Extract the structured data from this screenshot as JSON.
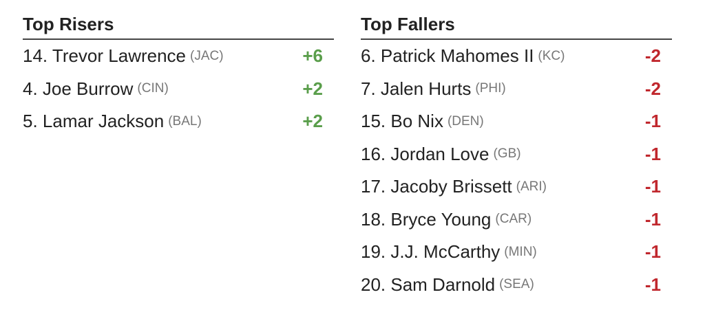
{
  "risers": {
    "title": "Top Risers",
    "rows": [
      {
        "player": "14. Trevor Lawrence",
        "team": "(JAC)",
        "change": "+6"
      },
      {
        "player": "4. Joe Burrow",
        "team": "(CIN)",
        "change": "+2"
      },
      {
        "player": "5. Lamar Jackson",
        "team": "(BAL)",
        "change": "+2"
      }
    ]
  },
  "fallers": {
    "title": "Top Fallers",
    "rows": [
      {
        "player": "6. Patrick Mahomes II",
        "team": "(KC)",
        "change": "-2"
      },
      {
        "player": "7. Jalen Hurts",
        "team": "(PHI)",
        "change": "-2"
      },
      {
        "player": "15. Bo Nix",
        "team": "(DEN)",
        "change": "-1"
      },
      {
        "player": "16. Jordan Love",
        "team": "(GB)",
        "change": "-1"
      },
      {
        "player": "17. Jacoby Brissett",
        "team": "(ARI)",
        "change": "-1"
      },
      {
        "player": "18. Bryce Young",
        "team": "(CAR)",
        "change": "-1"
      },
      {
        "player": "19. J.J. McCarthy",
        "team": "(MIN)",
        "change": "-1"
      },
      {
        "player": "20. Sam Darnold",
        "team": "(SEA)",
        "change": "-1"
      }
    ]
  }
}
